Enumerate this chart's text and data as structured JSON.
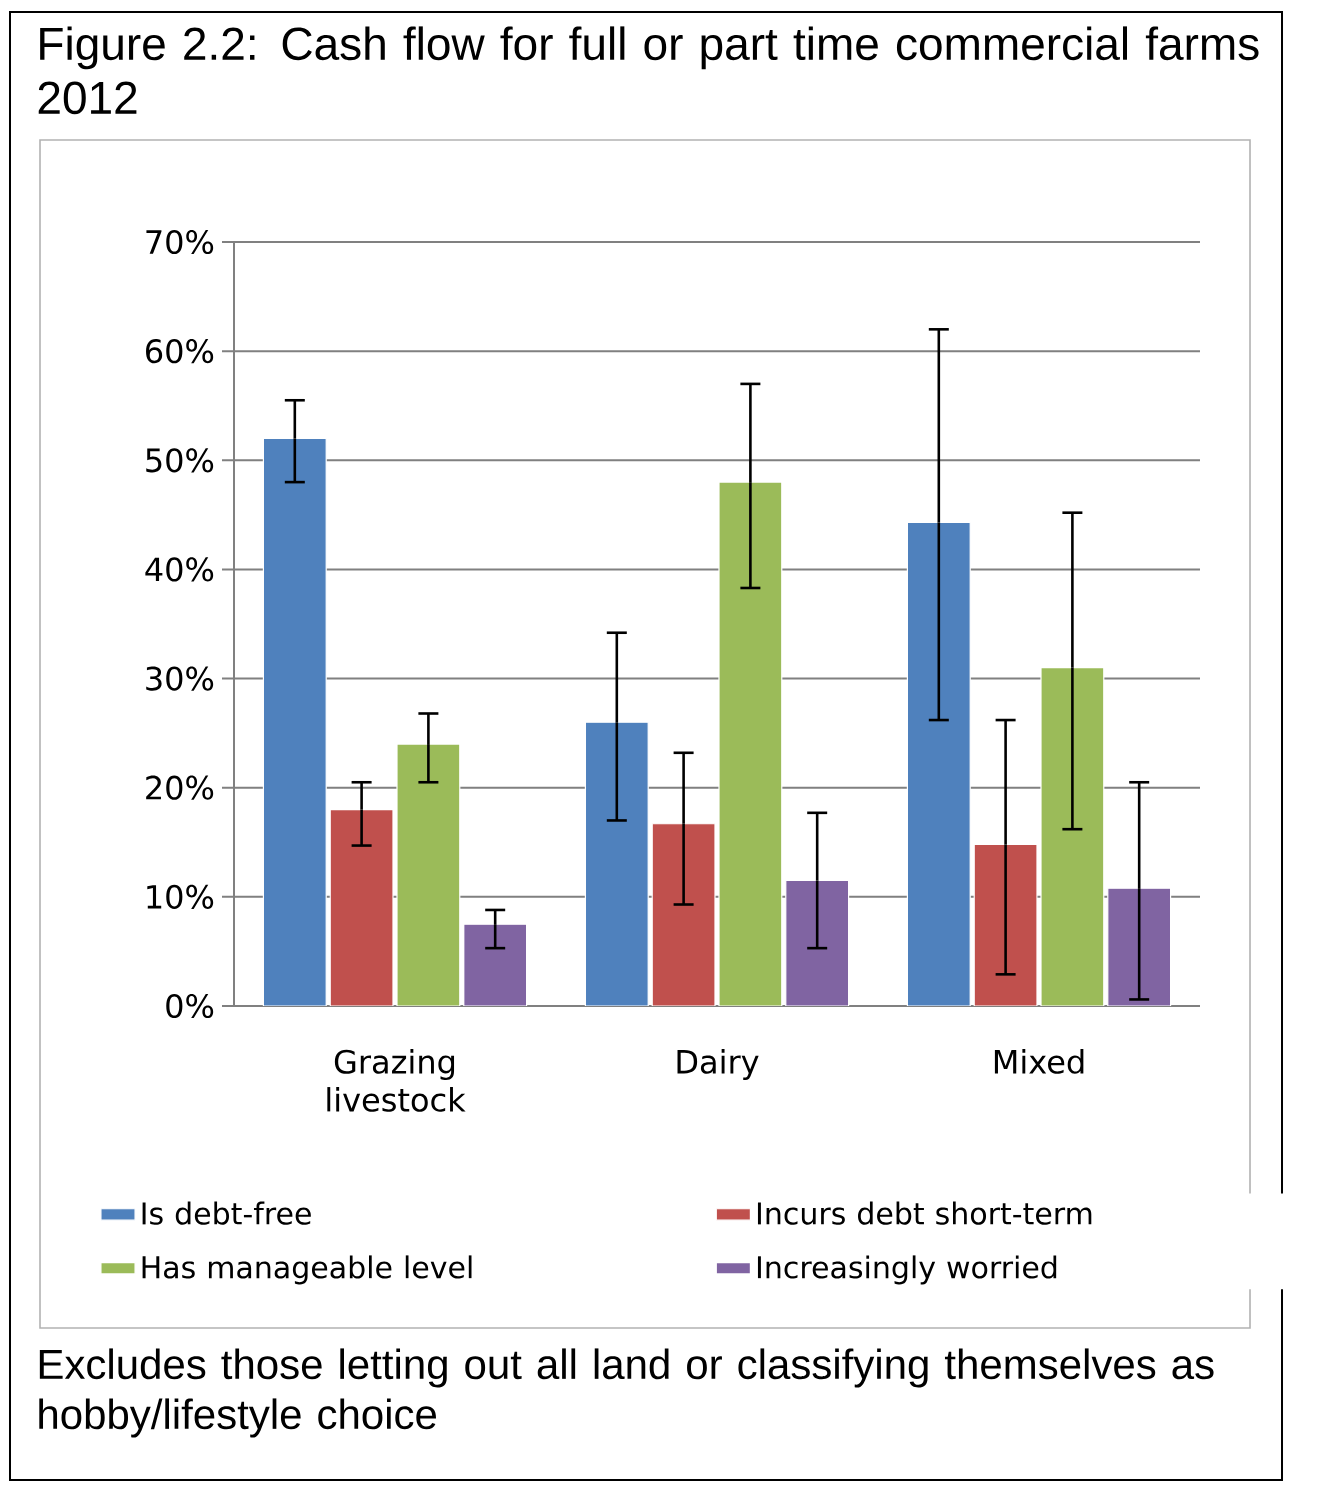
{
  "chart_data": {
    "type": "bar",
    "title": "Figure 2.2: Cash flow for full or part time commercial farms 2012",
    "categories": [
      "Grazing livestock",
      "Dairy",
      "Mixed"
    ],
    "series": [
      {
        "name": "Is debt-free",
        "color": "#4f81bd",
        "values": [
          52,
          26,
          44.3
        ],
        "errors": [
          [
            48,
            55.5
          ],
          [
            17,
            34.2
          ],
          [
            26.2,
            62
          ]
        ]
      },
      {
        "name": "Incurs debt short-term",
        "color": "#c0504d",
        "values": [
          18,
          16.7,
          14.8
        ],
        "errors": [
          [
            14.7,
            20.5
          ],
          [
            9.3,
            23.2
          ],
          [
            2.9,
            26.2
          ]
        ]
      },
      {
        "name": "Has manageable level",
        "color": "#9bbb59",
        "values": [
          24,
          48,
          31
        ],
        "errors": [
          [
            20.5,
            26.8
          ],
          [
            38.3,
            57
          ],
          [
            16.2,
            45.2
          ]
        ]
      },
      {
        "name": "Increasingly worried",
        "color": "#8064a2",
        "values": [
          7.5,
          11.5,
          10.8
        ],
        "errors": [
          [
            5.3,
            8.8
          ],
          [
            5.3,
            17.7
          ],
          [
            0.6,
            20.5
          ]
        ]
      }
    ],
    "ylim": [
      0,
      70
    ],
    "yticks": [
      {
        "value": 0,
        "label": "0%"
      },
      {
        "value": 10,
        "label": "10%"
      },
      {
        "value": 20,
        "label": "20%"
      },
      {
        "value": 30,
        "label": "30%"
      },
      {
        "value": 40,
        "label": "40%"
      },
      {
        "value": 50,
        "label": "50%"
      },
      {
        "value": 60,
        "label": "60%"
      },
      {
        "value": 70,
        "label": "70%"
      }
    ],
    "grid": "y",
    "legend": "bottom",
    "annotations": [
      "Excludes those letting out all land or classifying themselves as hobby/lifestyle choice"
    ]
  }
}
